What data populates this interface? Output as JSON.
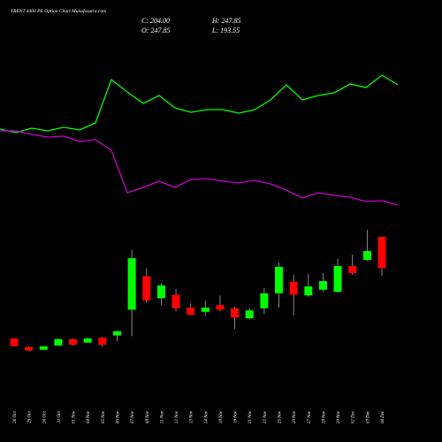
{
  "chart_data": {
    "type": "candlestick",
    "title": "TRENT 4400  PE Option  Chart Munafasutra.com",
    "info": [
      "C: 204.00",
      "H: 247.85",
      "O: 247.85",
      "L: 193.55"
    ],
    "categories": [
      "28 Oct",
      "29 Oct",
      "30 Oct",
      "31 Oct",
      "01 Nov",
      "04 Nov",
      "05 Nov",
      "06 Nov",
      "07 Nov",
      "08 Nov",
      "11 Nov",
      "12 Nov",
      "13 Nov",
      "14 Nov",
      "18 Nov",
      "19 Nov",
      "21 Nov",
      "22 Nov",
      "25 Nov",
      "26 Nov",
      "27 Nov",
      "28 Nov",
      "29 Nov",
      "02 Dec",
      "03 Dec",
      "04 Dec"
    ],
    "open": [
      106,
      94,
      90,
      96,
      105,
      100,
      107,
      110,
      146,
      193,
      162,
      167,
      149,
      143,
      152.6,
      148,
      134,
      148,
      169,
      185,
      166,
      174,
      171,
      207,
      215.6,
      247.85
    ],
    "high": [
      106,
      95,
      95,
      106,
      106,
      107,
      108,
      117,
      230,
      204,
      183,
      175,
      155,
      159,
      166,
      150,
      148,
      176,
      212,
      195,
      196,
      197,
      217,
      223,
      258,
      247.85
    ],
    "low": [
      95,
      88,
      90,
      96,
      96,
      100,
      94,
      102,
      109,
      156,
      152.6,
      144,
      138,
      138,
      144,
      119,
      132,
      140,
      149,
      138,
      164,
      171,
      170,
      195,
      214,
      193.55
    ],
    "close": [
      95,
      89,
      95,
      105,
      97,
      106,
      97,
      116,
      218,
      159,
      180,
      148,
      139,
      149,
      146,
      135,
      145,
      169,
      206,
      167,
      178.6,
      186,
      207,
      197,
      228,
      204
    ],
    "up_color": "#00ff00",
    "down_color": "#ff0000",
    "ylim": [
      60,
      270
    ],
    "lines": [
      {
        "color": "#00ff00",
        "values": [
          104,
          100,
          105,
          102,
          106,
          103,
          111,
          160,
          146,
          133,
          142,
          128,
          123,
          126,
          126,
          122,
          126,
          137,
          154,
          137,
          142,
          145,
          155,
          151,
          165,
          154
        ]
      },
      {
        "color": "#cc00cc",
        "values": [
          102,
          102,
          98,
          95,
          96,
          90,
          92,
          80,
          32,
          38,
          45,
          38,
          47,
          48,
          45,
          43,
          46,
          42,
          35,
          26,
          32,
          29,
          27,
          22,
          23,
          18
        ]
      }
    ],
    "y2lim": [
      0,
      190
    ]
  }
}
